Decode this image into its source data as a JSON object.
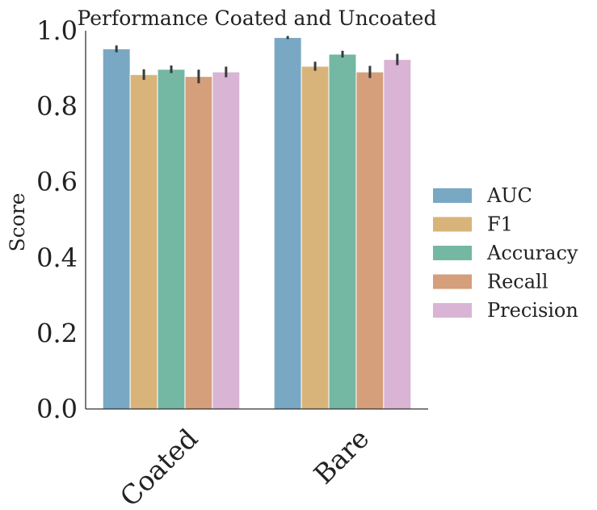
{
  "chart_data": {
    "type": "bar",
    "title": "Performance Coated and Uncoated",
    "xlabel": "",
    "ylabel": "Score",
    "ylim": [
      0,
      1.0
    ],
    "yticks": [
      "0.0",
      "0.2",
      "0.4",
      "0.6",
      "0.8",
      "1.0"
    ],
    "categories": [
      "Coated",
      "Bare"
    ],
    "grid": false,
    "legend_position": "right",
    "series": [
      {
        "name": "AUC",
        "color": "#78a8c3",
        "values": [
          0.952,
          0.982
        ],
        "err": [
          0.009,
          0.004
        ]
      },
      {
        "name": "F1",
        "color": "#d8b47a",
        "values": [
          0.884,
          0.906
        ],
        "err": [
          0.014,
          0.012
        ]
      },
      {
        "name": "Accuracy",
        "color": "#74b7a3",
        "values": [
          0.898,
          0.938
        ],
        "err": [
          0.01,
          0.009
        ]
      },
      {
        "name": "Recall",
        "color": "#d49f7a",
        "values": [
          0.879,
          0.891
        ],
        "err": [
          0.018,
          0.016
        ]
      },
      {
        "name": "Precision",
        "color": "#d9b4d4",
        "values": [
          0.891,
          0.924
        ],
        "err": [
          0.014,
          0.015
        ]
      }
    ]
  }
}
